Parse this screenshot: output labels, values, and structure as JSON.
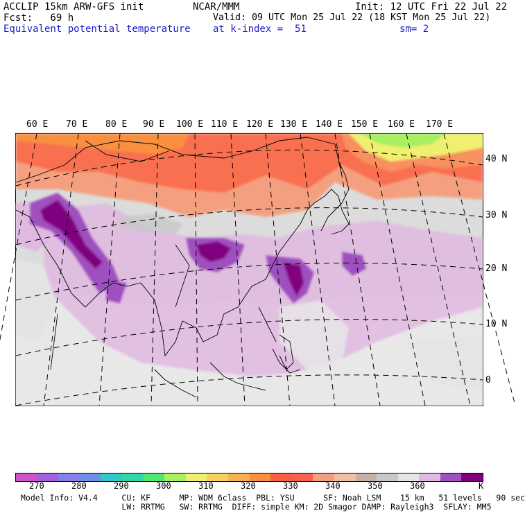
{
  "header": {
    "left1": "ACCLIP 15km ARW-GFS init",
    "left2": "Fcst:   69 h",
    "left3": "Equivalent potential temperature",
    "center1": "NCAR/MMM",
    "center2": "Valid: 09 UTC Mon 25 Jul 22 (18 KST Mon 25 Jul 22)",
    "center3": "at k-index =  51",
    "right1": "Init: 12 UTC Fri 22 Jul 22",
    "right3": "sm= 2"
  },
  "map": {
    "lon_labels": [
      "60 E",
      "70 E",
      "80 E",
      "90 E",
      "100 E",
      "110 E",
      "120 E",
      "130 E",
      "140 E",
      "150 E",
      "160 E",
      "170 E"
    ],
    "lat_labels": [
      "40 N",
      "30 N",
      "20 N",
      "10 N",
      "0"
    ]
  },
  "colorbar": {
    "colors": [
      "#cc55cc",
      "#a060e0",
      "#8a7ee8",
      "#7090e8",
      "#30c8c8",
      "#30d8a8",
      "#50e870",
      "#a8f060",
      "#f0f070",
      "#f8d060",
      "#f8b050",
      "#f89040",
      "#f86040",
      "#f86050",
      "#f4a080",
      "#f0c0a0",
      "#c8b0a8",
      "#c8c8c8",
      "#e4e4e4",
      "#e0b8e0",
      "#a050c0",
      "#800080"
    ],
    "ticks": [
      "270",
      "280",
      "290",
      "300",
      "310",
      "320",
      "330",
      "340",
      "350",
      "360"
    ],
    "unit": "K"
  },
  "footer": {
    "line1": "Model Info: V4.4     CU: KF      MP: WDM 6class  PBL: YSU      SF: Noah LSM    15 km   51 levels   90 sec",
    "line2": "                     LW: RRTMG   SW: RRTMG  DIFF: simple KM: 2D Smagor DAMP: Rayleigh3  SFLAY: MM5"
  }
}
